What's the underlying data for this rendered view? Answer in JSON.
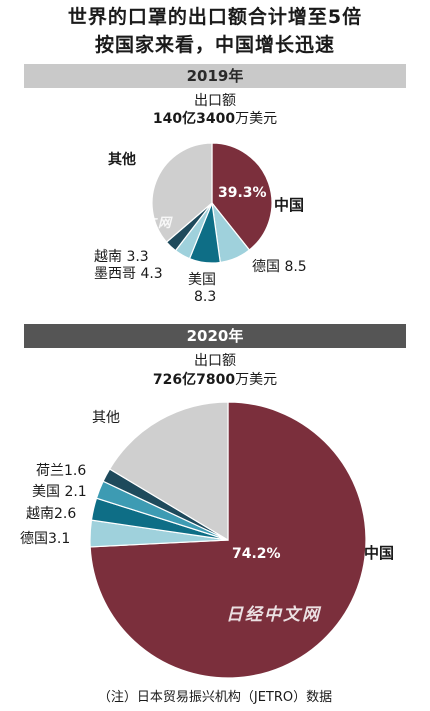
{
  "header": {
    "title_line1": "世界的口罩的出口额合计增至5倍",
    "title_line2": "按国家来看，中国增长迅速"
  },
  "charts": {
    "y2019": {
      "year_label": "2019年",
      "total_label": "出口额",
      "total_value": "140亿3400",
      "total_unit": "万美元"
    },
    "y2020": {
      "year_label": "2020年",
      "total_label": "出口额",
      "total_value": "726亿7800",
      "total_unit": "万美元"
    }
  },
  "watermark": "日经中文网",
  "footnote": "（注）日本贸易振兴机构（JETRO）数据",
  "colors": {
    "china": "#7b2f3c",
    "germany": "#9fd1dc",
    "teal_dark": "#0e6e86",
    "teal_mid": "#3d9bb3",
    "teal_light": "#9fd1dc",
    "teal_navy": "#1e4a5c",
    "other": "#cfcfcf"
  },
  "chart_data": [
    {
      "type": "pie",
      "title": "2019年",
      "total": "140亿3400万美元",
      "slices": [
        {
          "name": "中国",
          "label": "中国",
          "value": 39.3,
          "value_label": "39.3%",
          "color": "#7b2f3c"
        },
        {
          "name": "德国",
          "label": "德国 8.5",
          "value": 8.5,
          "color": "#9fd1dc"
        },
        {
          "name": "美国",
          "label": "美国 8.3",
          "value": 8.3,
          "color": "#0e6e86"
        },
        {
          "name": "墨西哥",
          "label": "墨西哥 4.3",
          "value": 4.3,
          "color": "#9fd1dc"
        },
        {
          "name": "越南",
          "label": "越南 3.3",
          "value": 3.3,
          "color": "#1e4a5c"
        },
        {
          "name": "其他",
          "label": "其他",
          "value": 36.3,
          "color": "#cfcfcf"
        }
      ]
    },
    {
      "type": "pie",
      "title": "2020年",
      "total": "726亿7800万美元",
      "slices": [
        {
          "name": "中国",
          "label": "中国",
          "value": 74.2,
          "value_label": "74.2%",
          "color": "#7b2f3c"
        },
        {
          "name": "德国",
          "label": "德国3.1",
          "value": 3.1,
          "color": "#9fd1dc"
        },
        {
          "name": "越南",
          "label": "越南2.6",
          "value": 2.6,
          "color": "#0e6e86"
        },
        {
          "name": "美国",
          "label": "美国 2.1",
          "value": 2.1,
          "color": "#3d9bb3"
        },
        {
          "name": "荷兰",
          "label": "荷兰1.6",
          "value": 1.6,
          "color": "#1e4a5c"
        },
        {
          "name": "其他",
          "label": "其他",
          "value": 16.4,
          "color": "#cfcfcf"
        }
      ]
    }
  ]
}
